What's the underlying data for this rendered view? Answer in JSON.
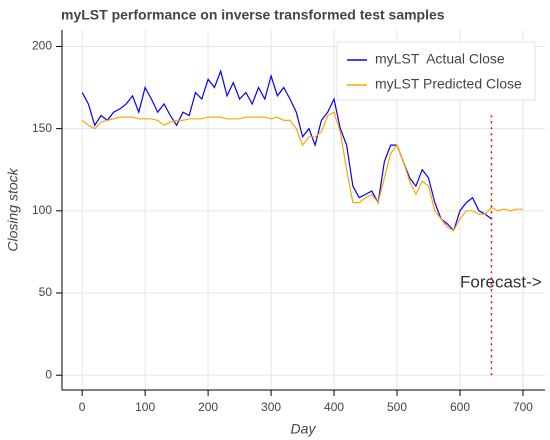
{
  "chart_data": {
    "type": "line",
    "title": "myLST performance on inverse transformed test samples",
    "x_label": "Day",
    "y_label": "Closing stock",
    "x": [
      0,
      10,
      20,
      30,
      40,
      50,
      60,
      70,
      80,
      90,
      100,
      110,
      120,
      130,
      140,
      150,
      160,
      170,
      180,
      190,
      200,
      210,
      220,
      230,
      240,
      250,
      260,
      270,
      280,
      290,
      300,
      310,
      320,
      330,
      340,
      350,
      360,
      370,
      380,
      390,
      400,
      410,
      420,
      430,
      440,
      450,
      460,
      470,
      480,
      490,
      500,
      510,
      520,
      530,
      540,
      550,
      560,
      570,
      580,
      590,
      600,
      610,
      620,
      630,
      640,
      650,
      660,
      670,
      680,
      690,
      700
    ],
    "series": [
      {
        "name": "myLST  Actual Close",
        "color": "#0000ff",
        "values": [
          172,
          165,
          152,
          158,
          155,
          160,
          162,
          165,
          170,
          160,
          175,
          168,
          160,
          165,
          158,
          152,
          160,
          158,
          172,
          168,
          180,
          175,
          185,
          170,
          178,
          168,
          172,
          165,
          175,
          168,
          182,
          170,
          175,
          168,
          160,
          145,
          150,
          140,
          155,
          160,
          168,
          150,
          140,
          115,
          108,
          110,
          112,
          105,
          130,
          140,
          140,
          130,
          120,
          115,
          125,
          120,
          105,
          95,
          92,
          88,
          100,
          105,
          108,
          100,
          98,
          95,
          null,
          null,
          null,
          null,
          null
        ]
      },
      {
        "name": "myLST Predicted Close",
        "color": "#ffa500",
        "values": [
          155,
          152,
          150,
          154,
          155,
          156,
          157,
          157,
          157,
          156,
          156,
          156,
          155,
          152,
          154,
          155,
          155,
          156,
          156,
          156,
          157,
          157,
          157,
          156,
          156,
          156,
          157,
          157,
          157,
          157,
          156,
          157,
          155,
          155,
          150,
          140,
          145,
          145,
          148,
          158,
          160,
          148,
          125,
          105,
          105,
          108,
          110,
          105,
          120,
          135,
          140,
          130,
          118,
          110,
          118,
          115,
          100,
          95,
          90,
          88,
          95,
          100,
          100,
          98,
          98,
          102,
          100,
          101,
          100,
          101,
          101
        ]
      }
    ],
    "vline": {
      "x": 650,
      "y": [
        0,
        158
      ],
      "color": "#ff0000"
    },
    "annotation": {
      "text": "Forecast->",
      "x": 600,
      "y": 56
    },
    "xlim": [
      -32,
      735
    ],
    "xticks": [
      0,
      100,
      200,
      300,
      400,
      500,
      600,
      700
    ],
    "ylim": [
      -9,
      210
    ],
    "yticks": [
      0,
      50,
      100,
      150,
      200
    ],
    "grid": true,
    "legend": "top-right"
  }
}
